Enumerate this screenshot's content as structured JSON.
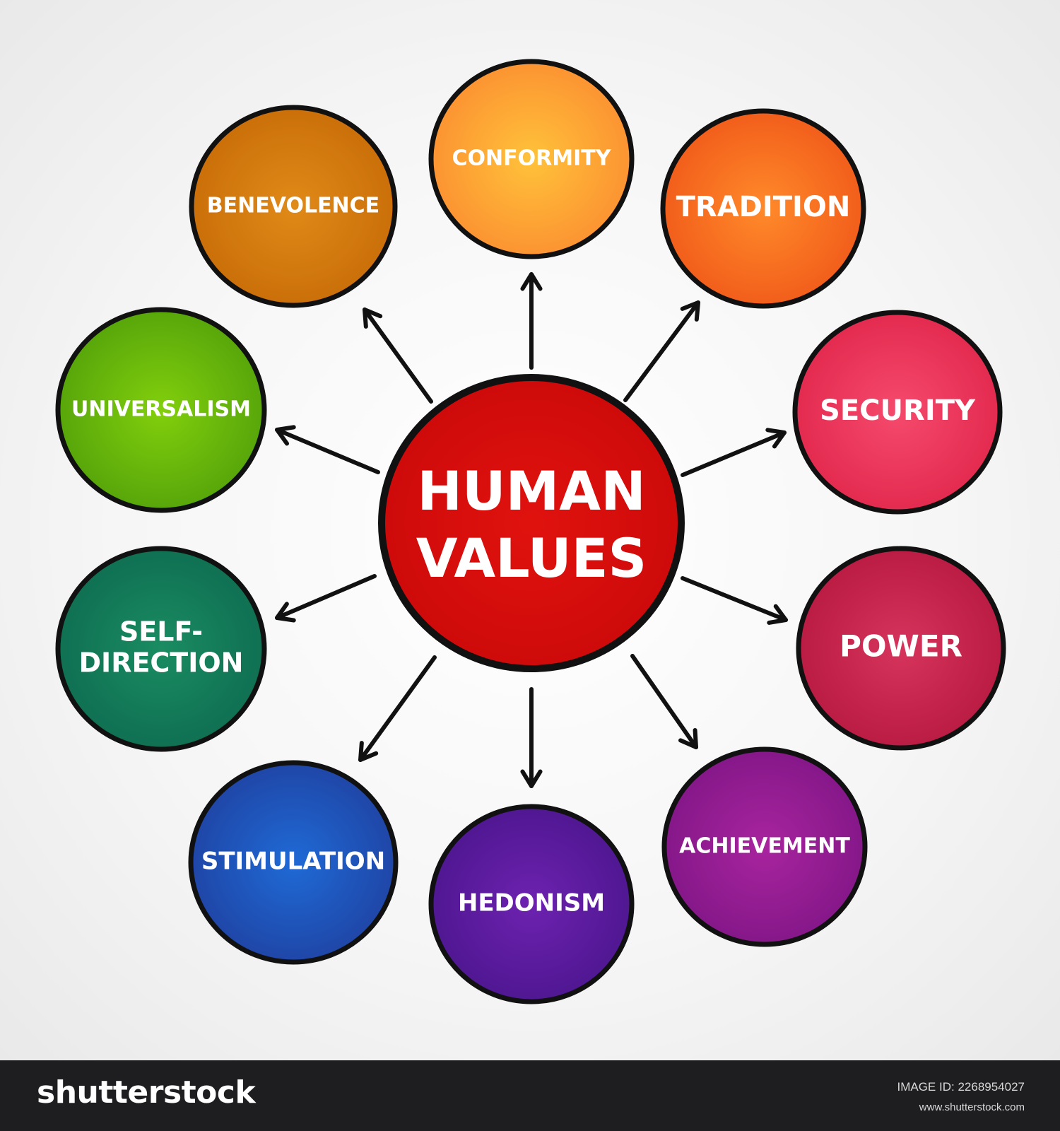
{
  "center": {
    "line1": "HUMAN",
    "line2": "VALUES",
    "color": "#cc0a0a"
  },
  "nodes": [
    {
      "id": "conformity",
      "label": [
        "CONFORMITY"
      ],
      "color": "#fb8a30",
      "highlight": "#ffc23a"
    },
    {
      "id": "tradition",
      "label": [
        "TRADITION"
      ],
      "color": "#ef5518",
      "highlight": "#ff8a2a"
    },
    {
      "id": "security",
      "label": [
        "SECURITY"
      ],
      "color": "#e0244a",
      "highlight": "#f54a6c"
    },
    {
      "id": "power",
      "label": [
        "POWER"
      ],
      "color": "#b5173e",
      "highlight": "#d6345c"
    },
    {
      "id": "achievement",
      "label": [
        "ACHIEVEMENT"
      ],
      "color": "#7e1585",
      "highlight": "#a8249e"
    },
    {
      "id": "hedonism",
      "label": [
        "HEDONISM"
      ],
      "color": "#4a158c",
      "highlight": "#6d22b0"
    },
    {
      "id": "stimulation",
      "label": [
        "STIMULATION"
      ],
      "color": "#1f3f9e",
      "highlight": "#1f6ad6"
    },
    {
      "id": "self-direction",
      "label": [
        "SELF-",
        "DIRECTION"
      ],
      "color": "#0d6a4f",
      "highlight": "#1a8c62"
    },
    {
      "id": "universalism",
      "label": [
        "UNIVERSALISM"
      ],
      "color": "#4f9e0a",
      "highlight": "#82cf0c"
    },
    {
      "id": "benevolence",
      "label": [
        "BENEVOLENCE"
      ],
      "color": "#c66a06",
      "highlight": "#e08a18"
    }
  ],
  "footer": {
    "brand": "shutterstock",
    "image_id_label": "IMAGE ID:",
    "image_id": "2268954027",
    "site": "www.shutterstock.com"
  },
  "colors": {
    "outline": "#111111",
    "arrow": "#111111",
    "footer_bg": "#1e1e21"
  }
}
